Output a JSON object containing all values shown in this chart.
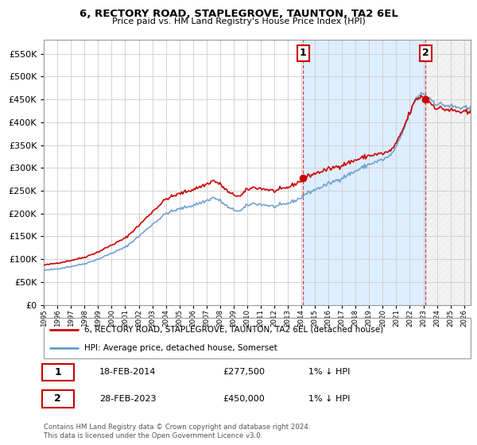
{
  "title": "6, RECTORY ROAD, STAPLEGROVE, TAUNTON, TA2 6EL",
  "subtitle": "Price paid vs. HM Land Registry's House Price Index (HPI)",
  "legend_line1": "6, RECTORY ROAD, STAPLEGROVE, TAUNTON, TA2 6EL (detached house)",
  "legend_line2": "HPI: Average price, detached house, Somerset",
  "annotation1_label": "1",
  "annotation1_date": "18-FEB-2014",
  "annotation1_price": "£277,500",
  "annotation1_hpi": "1% ↓ HPI",
  "annotation2_label": "2",
  "annotation2_date": "28-FEB-2023",
  "annotation2_price": "£450,000",
  "annotation2_hpi": "1% ↓ HPI",
  "footnote": "Contains HM Land Registry data © Crown copyright and database right 2024.\nThis data is licensed under the Open Government Licence v3.0.",
  "ylim": [
    0,
    580000
  ],
  "yticks": [
    0,
    50000,
    100000,
    150000,
    200000,
    250000,
    300000,
    350000,
    400000,
    450000,
    500000,
    550000
  ],
  "hpi_color": "#6699cc",
  "price_color": "#cc0000",
  "background_color": "#ffffff",
  "grid_color": "#cccccc",
  "shaded_region_color": "#ddeeff",
  "sale1_x": 2014.12,
  "sale1_y": 277500,
  "sale2_x": 2023.15,
  "sale2_y": 450000,
  "xmin": 1995,
  "xmax": 2026.5
}
